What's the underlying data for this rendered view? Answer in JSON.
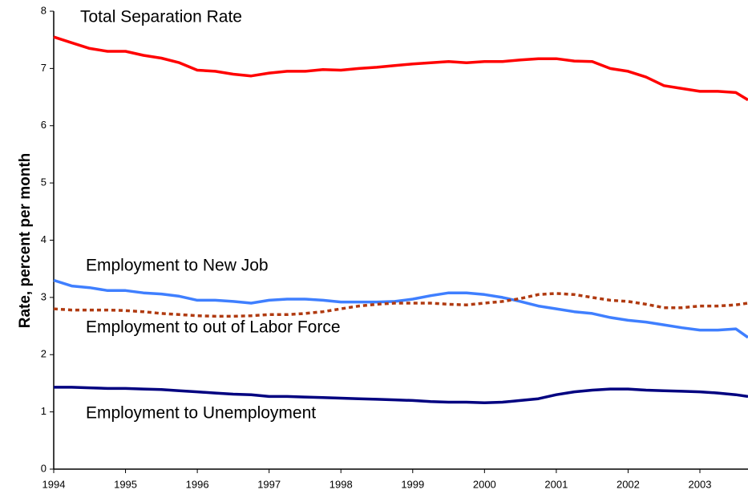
{
  "chart_data": {
    "type": "line",
    "ylabel": "Rate, percent per month",
    "x": [
      1994,
      1994.25,
      1994.5,
      1994.75,
      1995,
      1995.25,
      1995.5,
      1995.75,
      1996,
      1996.25,
      1996.5,
      1996.75,
      1997,
      1997.25,
      1997.5,
      1997.75,
      1998,
      1998.25,
      1998.5,
      1998.75,
      1999,
      1999.25,
      1999.5,
      1999.75,
      2000,
      2000.25,
      2000.5,
      2000.75,
      2001,
      2001.25,
      2001.5,
      2001.75,
      2002,
      2002.25,
      2002.5,
      2002.75,
      2003,
      2003.25,
      2003.5,
      2003.67
    ],
    "series": [
      {
        "name": "Total Separation Rate",
        "color": "#ff0000",
        "dash": false,
        "values": [
          7.55,
          7.45,
          7.35,
          7.3,
          7.3,
          7.23,
          7.18,
          7.1,
          6.97,
          6.95,
          6.9,
          6.87,
          6.92,
          6.95,
          6.95,
          6.98,
          6.97,
          7.0,
          7.02,
          7.05,
          7.08,
          7.1,
          7.12,
          7.1,
          7.12,
          7.12,
          7.15,
          7.17,
          7.17,
          7.13,
          7.12,
          7.0,
          6.95,
          6.85,
          6.7,
          6.65,
          6.6,
          6.6,
          6.58,
          6.45
        ]
      },
      {
        "name": "Employment to New Job",
        "color": "#3f7fff",
        "dash": false,
        "values": [
          3.3,
          3.2,
          3.17,
          3.12,
          3.12,
          3.08,
          3.06,
          3.02,
          2.95,
          2.95,
          2.93,
          2.9,
          2.95,
          2.97,
          2.97,
          2.95,
          2.92,
          2.92,
          2.92,
          2.93,
          2.97,
          3.03,
          3.08,
          3.08,
          3.05,
          3.0,
          2.93,
          2.85,
          2.8,
          2.75,
          2.72,
          2.65,
          2.6,
          2.57,
          2.52,
          2.47,
          2.43,
          2.43,
          2.45,
          2.3
        ]
      },
      {
        "name": "Employment to out of Labor Force",
        "color": "#b03a10",
        "dash": true,
        "values": [
          2.8,
          2.78,
          2.78,
          2.78,
          2.77,
          2.75,
          2.72,
          2.7,
          2.68,
          2.67,
          2.67,
          2.68,
          2.7,
          2.7,
          2.72,
          2.75,
          2.8,
          2.85,
          2.88,
          2.9,
          2.9,
          2.9,
          2.88,
          2.87,
          2.9,
          2.93,
          2.98,
          3.05,
          3.07,
          3.05,
          3.0,
          2.95,
          2.93,
          2.88,
          2.82,
          2.82,
          2.85,
          2.85,
          2.87,
          2.9
        ]
      },
      {
        "name": "Employment to Unemployment",
        "color": "#000080",
        "dash": false,
        "values": [
          1.43,
          1.43,
          1.42,
          1.41,
          1.41,
          1.4,
          1.39,
          1.37,
          1.35,
          1.33,
          1.31,
          1.3,
          1.27,
          1.27,
          1.26,
          1.25,
          1.24,
          1.23,
          1.22,
          1.21,
          1.2,
          1.18,
          1.17,
          1.17,
          1.16,
          1.17,
          1.2,
          1.23,
          1.3,
          1.35,
          1.38,
          1.4,
          1.4,
          1.38,
          1.37,
          1.36,
          1.35,
          1.33,
          1.3,
          1.27
        ]
      }
    ],
    "xlim": [
      1994,
      2003.67
    ],
    "xticks": [
      1994,
      1995,
      1996,
      1997,
      1998,
      1999,
      2000,
      2001,
      2002,
      2003
    ],
    "ylim": [
      0,
      8
    ],
    "yticks": [
      0,
      1,
      2,
      3,
      4,
      5,
      6,
      7,
      8
    ]
  }
}
